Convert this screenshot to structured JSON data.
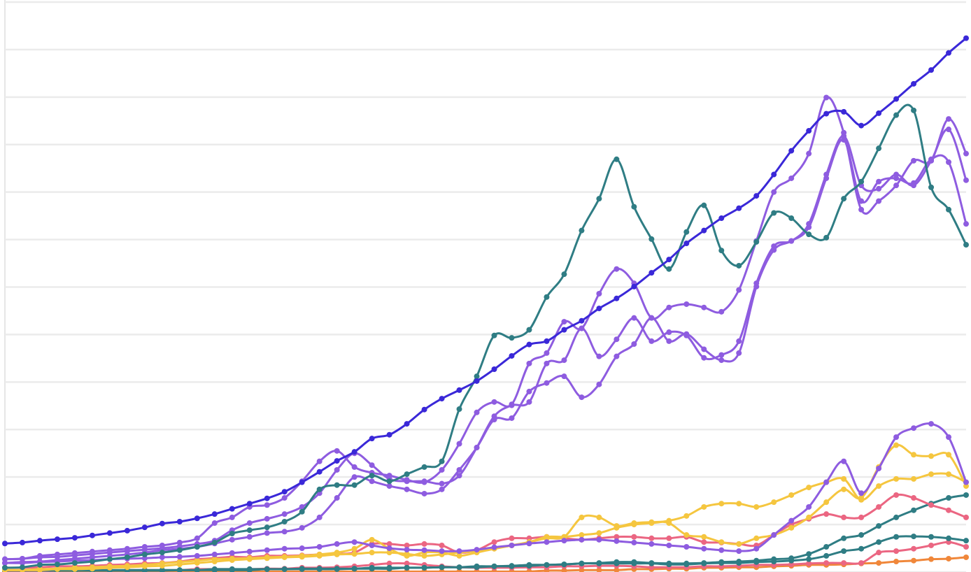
{
  "chart_data": {
    "type": "line",
    "grid": true,
    "ylim": [
      0,
      12
    ],
    "yticks": [
      0,
      1,
      2,
      3,
      4,
      5,
      6,
      7,
      8,
      9,
      10,
      11,
      12
    ],
    "categories": [
      null,
      null,
      null,
      null,
      null,
      null,
      null,
      null,
      null,
      null,
      null,
      null,
      null,
      null,
      null,
      null,
      null,
      null,
      null,
      null,
      null,
      null,
      null,
      null,
      null,
      null,
      null,
      null,
      null,
      null,
      null,
      null,
      null,
      null,
      null,
      null,
      null,
      null,
      null,
      null,
      null,
      null,
      null,
      null,
      null,
      null,
      null,
      null,
      null,
      null,
      null,
      null,
      null,
      null,
      null,
      null
    ],
    "series": [
      {
        "color": "#f0873a",
        "values": [
          0.01,
          0.01,
          0.01,
          0.01,
          0.01,
          0.01,
          0.01,
          0.01,
          0.01,
          0.01,
          0.01,
          0.01,
          0.01,
          0.01,
          0.01,
          0.01,
          0.01,
          0.01,
          0.01,
          0.01,
          0.01,
          0.01,
          0.01,
          0.01,
          0.01,
          0.01,
          0.01,
          0.01,
          0.01,
          0.01,
          0.01,
          0.03,
          0.03,
          0.04,
          0.04,
          0.04,
          0.06,
          0.06,
          0.07,
          0.07,
          0.09,
          0.09,
          0.1,
          0.1,
          0.12,
          0.13,
          0.15,
          0.15,
          0.16,
          0.18,
          0.19,
          0.22,
          0.24,
          0.27,
          0.28,
          0.31
        ]
      },
      {
        "color": "#eb6682",
        "values": [
          0.01,
          0.01,
          0.01,
          0.03,
          0.03,
          0.03,
          0.03,
          0.04,
          0.04,
          0.04,
          0.04,
          0.06,
          0.06,
          0.06,
          0.06,
          0.07,
          0.07,
          0.09,
          0.09,
          0.1,
          0.12,
          0.15,
          0.18,
          0.18,
          0.15,
          0.12,
          0.1,
          0.09,
          0.09,
          0.09,
          0.1,
          0.1,
          0.12,
          0.12,
          0.13,
          0.13,
          0.12,
          0.1,
          0.1,
          0.1,
          0.12,
          0.12,
          0.13,
          0.15,
          0.15,
          0.16,
          0.18,
          0.19,
          0.19,
          0.19,
          0.41,
          0.44,
          0.49,
          0.56,
          0.63,
          0.53
        ]
      },
      {
        "color": "#2f7d84",
        "values": [
          0.03,
          0.03,
          0.03,
          0.03,
          0.03,
          0.03,
          0.03,
          0.03,
          0.03,
          0.03,
          0.04,
          0.04,
          0.04,
          0.04,
          0.04,
          0.06,
          0.06,
          0.06,
          0.06,
          0.06,
          0.07,
          0.07,
          0.07,
          0.09,
          0.09,
          0.1,
          0.1,
          0.12,
          0.12,
          0.13,
          0.15,
          0.15,
          0.16,
          0.18,
          0.18,
          0.18,
          0.18,
          0.18,
          0.16,
          0.16,
          0.18,
          0.19,
          0.19,
          0.21,
          0.22,
          0.24,
          0.27,
          0.34,
          0.44,
          0.49,
          0.63,
          0.74,
          0.75,
          0.74,
          0.71,
          0.66
        ]
      },
      {
        "color": "#2f7d84",
        "values": [
          0.03,
          0.03,
          0.03,
          0.03,
          0.03,
          0.04,
          0.04,
          0.04,
          0.04,
          0.04,
          0.04,
          0.04,
          0.06,
          0.06,
          0.06,
          0.06,
          0.06,
          0.07,
          0.07,
          0.07,
          0.07,
          0.09,
          0.09,
          0.09,
          0.09,
          0.1,
          0.1,
          0.1,
          0.12,
          0.12,
          0.13,
          0.15,
          0.16,
          0.18,
          0.19,
          0.21,
          0.21,
          0.19,
          0.18,
          0.18,
          0.19,
          0.21,
          0.22,
          0.24,
          0.27,
          0.29,
          0.38,
          0.53,
          0.71,
          0.78,
          0.97,
          1.15,
          1.3,
          1.44,
          1.56,
          1.62
        ]
      },
      {
        "color": "#eb6682",
        "values": [
          0.09,
          0.09,
          0.1,
          0.12,
          0.12,
          0.13,
          0.15,
          0.16,
          0.18,
          0.19,
          0.22,
          0.27,
          0.29,
          0.32,
          0.31,
          0.34,
          0.34,
          0.35,
          0.37,
          0.38,
          0.41,
          0.59,
          0.59,
          0.56,
          0.59,
          0.56,
          0.41,
          0.46,
          0.63,
          0.71,
          0.71,
          0.74,
          0.71,
          0.68,
          0.71,
          0.74,
          0.74,
          0.71,
          0.71,
          0.74,
          0.63,
          0.62,
          0.59,
          0.56,
          0.78,
          1.0,
          1.12,
          1.22,
          1.15,
          1.15,
          1.37,
          1.62,
          1.56,
          1.41,
          1.3,
          1.15
        ]
      },
      {
        "color": "#f5c63f",
        "values": [
          0.04,
          0.04,
          0.04,
          0.06,
          0.06,
          0.07,
          0.09,
          0.1,
          0.12,
          0.13,
          0.16,
          0.19,
          0.22,
          0.25,
          0.27,
          0.29,
          0.31,
          0.32,
          0.34,
          0.37,
          0.38,
          0.41,
          0.41,
          0.38,
          0.34,
          0.37,
          0.41,
          0.44,
          0.49,
          0.56,
          0.63,
          0.74,
          0.74,
          0.78,
          0.82,
          0.93,
          1.0,
          1.03,
          1.08,
          1.18,
          1.37,
          1.44,
          1.44,
          1.37,
          1.47,
          1.62,
          1.78,
          1.89,
          1.96,
          1.52,
          1.81,
          1.96,
          1.96,
          2.06,
          2.06,
          1.89
        ]
      },
      {
        "color": "#f5c63f",
        "values": [
          0.04,
          0.04,
          0.06,
          0.07,
          0.09,
          0.1,
          0.12,
          0.13,
          0.15,
          0.18,
          0.21,
          0.24,
          0.27,
          0.28,
          0.29,
          0.31,
          0.32,
          0.34,
          0.37,
          0.41,
          0.49,
          0.68,
          0.49,
          0.34,
          0.41,
          0.41,
          0.34,
          0.41,
          0.49,
          0.56,
          0.63,
          0.71,
          0.74,
          1.15,
          1.15,
          0.97,
          1.03,
          1.05,
          1.03,
          0.78,
          0.74,
          0.63,
          0.59,
          0.71,
          0.78,
          0.93,
          1.15,
          1.47,
          1.74,
          1.56,
          2.21,
          2.67,
          2.47,
          2.44,
          2.47,
          1.81
        ]
      },
      {
        "color": "#8e5ce0",
        "values": [
          0.19,
          0.19,
          0.21,
          0.22,
          0.24,
          0.25,
          0.27,
          0.28,
          0.29,
          0.31,
          0.32,
          0.34,
          0.37,
          0.4,
          0.43,
          0.46,
          0.49,
          0.5,
          0.53,
          0.59,
          0.63,
          0.56,
          0.5,
          0.47,
          0.46,
          0.44,
          0.44,
          0.47,
          0.52,
          0.56,
          0.6,
          0.63,
          0.66,
          0.68,
          0.68,
          0.65,
          0.62,
          0.59,
          0.56,
          0.53,
          0.49,
          0.46,
          0.44,
          0.49,
          0.78,
          1.08,
          1.37,
          1.89,
          2.33,
          1.66,
          2.18,
          2.84,
          3.03,
          3.12,
          2.84,
          1.89
        ]
      },
      {
        "color": "#8e5ce0",
        "values": [
          0.19,
          0.21,
          0.22,
          0.25,
          0.28,
          0.31,
          0.34,
          0.37,
          0.41,
          0.46,
          0.49,
          0.53,
          0.6,
          0.68,
          0.74,
          0.82,
          0.85,
          0.93,
          1.15,
          1.56,
          2.0,
          1.91,
          1.81,
          1.74,
          1.65,
          1.74,
          2.15,
          2.62,
          3.21,
          3.24,
          3.8,
          3.98,
          4.12,
          3.68,
          3.95,
          4.54,
          4.8,
          5.35,
          4.86,
          5.01,
          4.69,
          4.46,
          4.61,
          6.01,
          6.78,
          6.97,
          7.26,
          8.29,
          9.1,
          7.81,
          8.22,
          8.29,
          8.19,
          8.69,
          8.63,
          7.33
        ]
      },
      {
        "color": "#8e5ce0",
        "values": [
          0.27,
          0.28,
          0.31,
          0.32,
          0.35,
          0.38,
          0.41,
          0.44,
          0.47,
          0.5,
          0.54,
          0.59,
          0.66,
          0.88,
          1.03,
          1.12,
          1.22,
          1.37,
          1.66,
          2.15,
          2.5,
          2.25,
          1.96,
          1.91,
          1.91,
          1.86,
          2.03,
          2.62,
          3.28,
          3.51,
          3.58,
          4.39,
          4.46,
          5.13,
          4.54,
          4.9,
          5.35,
          4.86,
          5.05,
          4.98,
          4.51,
          4.57,
          4.86,
          6.08,
          6.86,
          6.97,
          7.33,
          8.37,
          9.18,
          8.14,
          8.07,
          8.37,
          8.14,
          8.66,
          9.32,
          8.25
        ]
      },
      {
        "color": "#8e5ce0",
        "values": [
          0.27,
          0.28,
          0.34,
          0.37,
          0.4,
          0.43,
          0.46,
          0.49,
          0.53,
          0.56,
          0.62,
          0.71,
          1.03,
          1.15,
          1.37,
          1.41,
          1.56,
          1.91,
          2.33,
          2.55,
          2.21,
          2.09,
          2.03,
          1.94,
          1.89,
          2.15,
          2.7,
          3.36,
          3.58,
          3.53,
          4.39,
          4.61,
          5.27,
          5.13,
          5.86,
          6.38,
          6.08,
          5.35,
          5.57,
          5.64,
          5.57,
          5.48,
          5.94,
          6.97,
          8.0,
          8.29,
          8.81,
          9.99,
          9.25,
          7.63,
          7.81,
          8.14,
          8.66,
          8.66,
          9.54,
          8.81
        ]
      },
      {
        "color": "#2f7d84",
        "values": [
          0.09,
          0.1,
          0.15,
          0.16,
          0.19,
          0.22,
          0.27,
          0.31,
          0.37,
          0.41,
          0.46,
          0.53,
          0.62,
          0.81,
          0.88,
          0.94,
          1.06,
          1.27,
          1.74,
          1.83,
          1.83,
          2.03,
          1.91,
          2.06,
          2.21,
          2.33,
          3.43,
          4.12,
          4.98,
          4.93,
          5.1,
          5.79,
          6.27,
          7.19,
          7.86,
          8.69,
          7.69,
          7.01,
          6.38,
          7.16,
          7.72,
          6.77,
          6.45,
          6.95,
          7.56,
          7.45,
          7.11,
          7.04,
          7.86,
          8.22,
          8.92,
          9.62,
          9.72,
          8.1,
          7.63,
          6.89
        ]
      },
      {
        "color": "#3a28d8",
        "values": [
          0.6,
          0.62,
          0.66,
          0.69,
          0.72,
          0.77,
          0.82,
          0.87,
          0.94,
          1.02,
          1.06,
          1.13,
          1.22,
          1.33,
          1.44,
          1.55,
          1.69,
          1.89,
          2.11,
          2.34,
          2.53,
          2.81,
          2.89,
          3.12,
          3.42,
          3.65,
          3.83,
          4.02,
          4.27,
          4.55,
          4.79,
          4.86,
          5.1,
          5.29,
          5.55,
          5.76,
          6.01,
          6.3,
          6.58,
          6.92,
          7.19,
          7.45,
          7.66,
          7.92,
          8.37,
          8.87,
          9.29,
          9.65,
          9.69,
          9.4,
          9.66,
          9.96,
          10.28,
          10.57,
          10.93,
          11.24
        ]
      }
    ]
  }
}
